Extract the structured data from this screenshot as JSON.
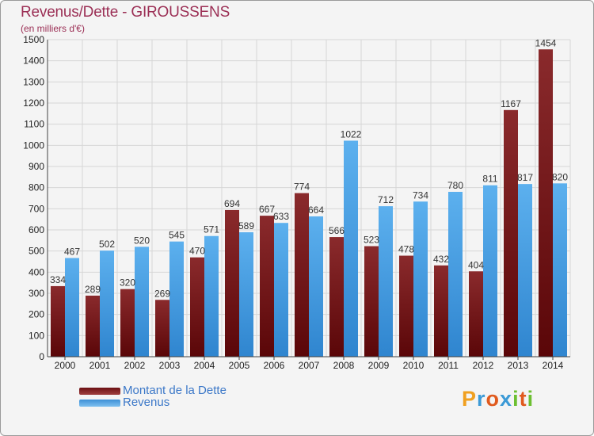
{
  "header": {
    "title": "Revenus/Dette - GIROUSSENS",
    "subtitle": "(en milliers d'€)"
  },
  "logo": {
    "letters": [
      "P",
      "r",
      "o",
      "x",
      "i",
      "t",
      "i"
    ]
  },
  "legend": {
    "debt_label": "Montant de la Dette",
    "revenue_label": "Revenus"
  },
  "colors": {
    "debt": "#7a1a1c",
    "revenue": "#4aa3e6",
    "title": "#9b2f55"
  },
  "chart_data": {
    "type": "bar",
    "title": "Revenus/Dette - GIROUSSENS",
    "ylabel": "(en milliers d'€)",
    "xlabel": "",
    "ylim": [
      0,
      1500
    ],
    "yticks": [
      0,
      100,
      200,
      300,
      400,
      500,
      600,
      700,
      800,
      900,
      1000,
      1100,
      1200,
      1300,
      1400,
      1500
    ],
    "grid": true,
    "legend_position": "bottom-left",
    "categories": [
      "2000",
      "2001",
      "2002",
      "2003",
      "2004",
      "2005",
      "2006",
      "2007",
      "2008",
      "2009",
      "2010",
      "2011",
      "2012",
      "2013",
      "2014"
    ],
    "series": [
      {
        "name": "Montant de la Dette",
        "values": [
          334,
          289,
          320,
          269,
          470,
          694,
          667,
          774,
          566,
          523,
          478,
          432,
          404,
          1167,
          1454
        ]
      },
      {
        "name": "Revenus",
        "values": [
          467,
          502,
          520,
          545,
          571,
          589,
          633,
          664,
          1022,
          712,
          734,
          780,
          811,
          817,
          820
        ]
      }
    ]
  }
}
